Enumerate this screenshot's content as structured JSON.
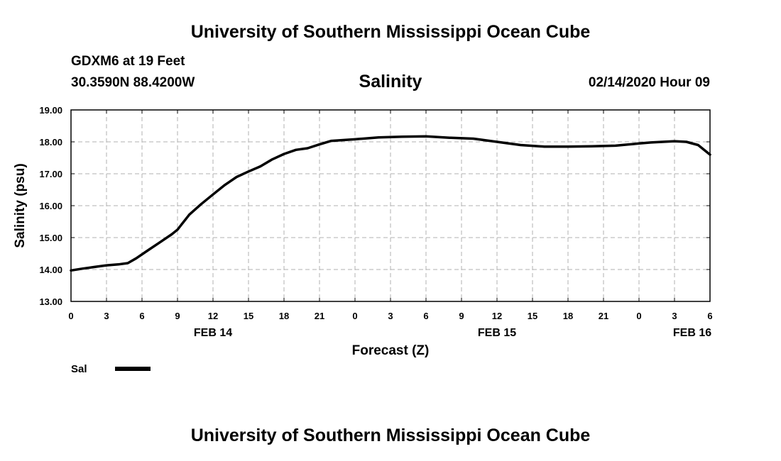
{
  "header": {
    "title": "University of Southern Mississippi Ocean Cube",
    "station": "GDXM6 at 19 Feet",
    "location": "30.3590N 88.4200W",
    "chart_title": "Salinity",
    "issued": "02/14/2020 Hour 09"
  },
  "footer": {
    "title": "University of Southern Mississippi Ocean Cube"
  },
  "colors": {
    "line": "#000000",
    "grid": "#b0b0b0",
    "axis": "#000000"
  },
  "chart_data": {
    "type": "line",
    "title": "Salinity",
    "xlabel": "Forecast (Z)",
    "ylabel": "Salinity (psu)",
    "xlim": [
      0,
      54
    ],
    "ylim": [
      13.0,
      19.0
    ],
    "ytick_labels": [
      "13.00",
      "14.00",
      "15.00",
      "16.00",
      "17.00",
      "18.00",
      "19.00"
    ],
    "ytick_values": [
      13,
      14,
      15,
      16,
      17,
      18,
      19
    ],
    "xtick_labels": [
      "0",
      "3",
      "6",
      "9",
      "12",
      "15",
      "18",
      "21",
      "0",
      "3",
      "6",
      "9",
      "12",
      "15",
      "18",
      "21",
      "0",
      "3",
      "6"
    ],
    "xtick_values": [
      0,
      3,
      6,
      9,
      12,
      15,
      18,
      21,
      24,
      27,
      30,
      33,
      36,
      39,
      42,
      45,
      48,
      51,
      54
    ],
    "date_labels": [
      {
        "label": "FEB 14",
        "x": 12
      },
      {
        "label": "FEB 15",
        "x": 36
      },
      {
        "label": "FEB 16",
        "x": 52.5
      }
    ],
    "grid": true,
    "legend": {
      "label": "Sal",
      "placement": "bottom-left"
    },
    "series": [
      {
        "name": "Sal",
        "x": [
          0,
          1,
          2,
          3,
          4,
          4.8,
          5.5,
          6.5,
          7.5,
          8.5,
          9,
          10,
          11,
          12,
          13,
          14,
          15,
          16,
          17,
          18,
          19,
          20,
          21,
          22,
          24,
          26,
          28,
          30,
          32,
          34,
          36,
          38,
          40,
          42,
          44,
          46,
          48,
          49,
          50,
          51,
          52,
          53,
          54
        ],
        "y": [
          13.97,
          14.03,
          14.08,
          14.13,
          14.16,
          14.2,
          14.35,
          14.6,
          14.85,
          15.1,
          15.25,
          15.72,
          16.05,
          16.35,
          16.65,
          16.9,
          17.07,
          17.23,
          17.45,
          17.62,
          17.75,
          17.8,
          17.92,
          18.03,
          18.08,
          18.14,
          18.16,
          18.17,
          18.13,
          18.1,
          18.0,
          17.9,
          17.85,
          17.85,
          17.86,
          17.88,
          17.95,
          17.98,
          18.0,
          18.02,
          18.0,
          17.9,
          17.6
        ]
      }
    ]
  }
}
